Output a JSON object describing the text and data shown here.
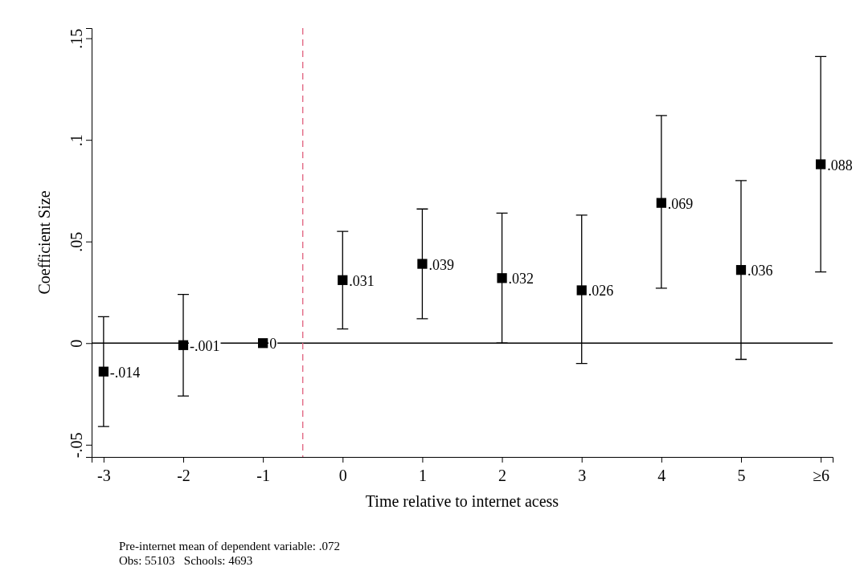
{
  "chart_data": {
    "type": "scatter",
    "xlabel": "Time relative to internet acess",
    "ylabel": "Coefficient Size",
    "x": [
      -3,
      -2,
      -1,
      0,
      1,
      2,
      3,
      4,
      5,
      6
    ],
    "series": [
      {
        "color": "#000000",
        "values": [
          -0.014,
          -0.001,
          0,
          0.031,
          0.039,
          0.032,
          0.026,
          0.069,
          0.036,
          0.088
        ],
        "value_labels": [
          "-.014",
          "-.001",
          "0",
          ".031",
          ".039",
          ".032",
          ".026",
          ".069",
          ".036",
          ".088"
        ],
        "errors": [
          [
            -0.041,
            0.013
          ],
          [
            -0.026,
            0.024
          ],
          null,
          [
            0.007,
            0.055
          ],
          [
            0.012,
            0.066
          ],
          [
            0,
            0.064
          ],
          [
            -0.01,
            0.063
          ],
          [
            0.027,
            0.112
          ],
          [
            -0.008,
            0.08
          ],
          [
            0.035,
            0.141
          ]
        ]
      }
    ],
    "marker": "square",
    "xlim": [
      -3.15,
      6.15
    ],
    "xticks": [
      -3,
      -2,
      -1,
      0,
      1,
      2,
      3,
      4,
      5,
      {
        "value": 6,
        "label": "≥6"
      }
    ],
    "ylim": [
      -0.056,
      0.155
    ],
    "yticks": [
      {
        "value": -0.05,
        "label": "-.05"
      },
      0,
      {
        "value": 0.05,
        "label": ".05"
      },
      {
        "value": 0.1,
        "label": ".1"
      },
      {
        "value": 0.15,
        "label": ".15"
      }
    ],
    "ref_lines": [
      {
        "axis": "y",
        "value": 0,
        "color": "#000000",
        "line_style": "solid"
      },
      {
        "axis": "x",
        "value": -0.5,
        "color": "#e0607e",
        "line_style": "dashed"
      }
    ],
    "grid": false,
    "annotations": [
      "Pre-internet mean of dependent variable: .072",
      "Obs: 55103   Schools: 4693"
    ]
  }
}
